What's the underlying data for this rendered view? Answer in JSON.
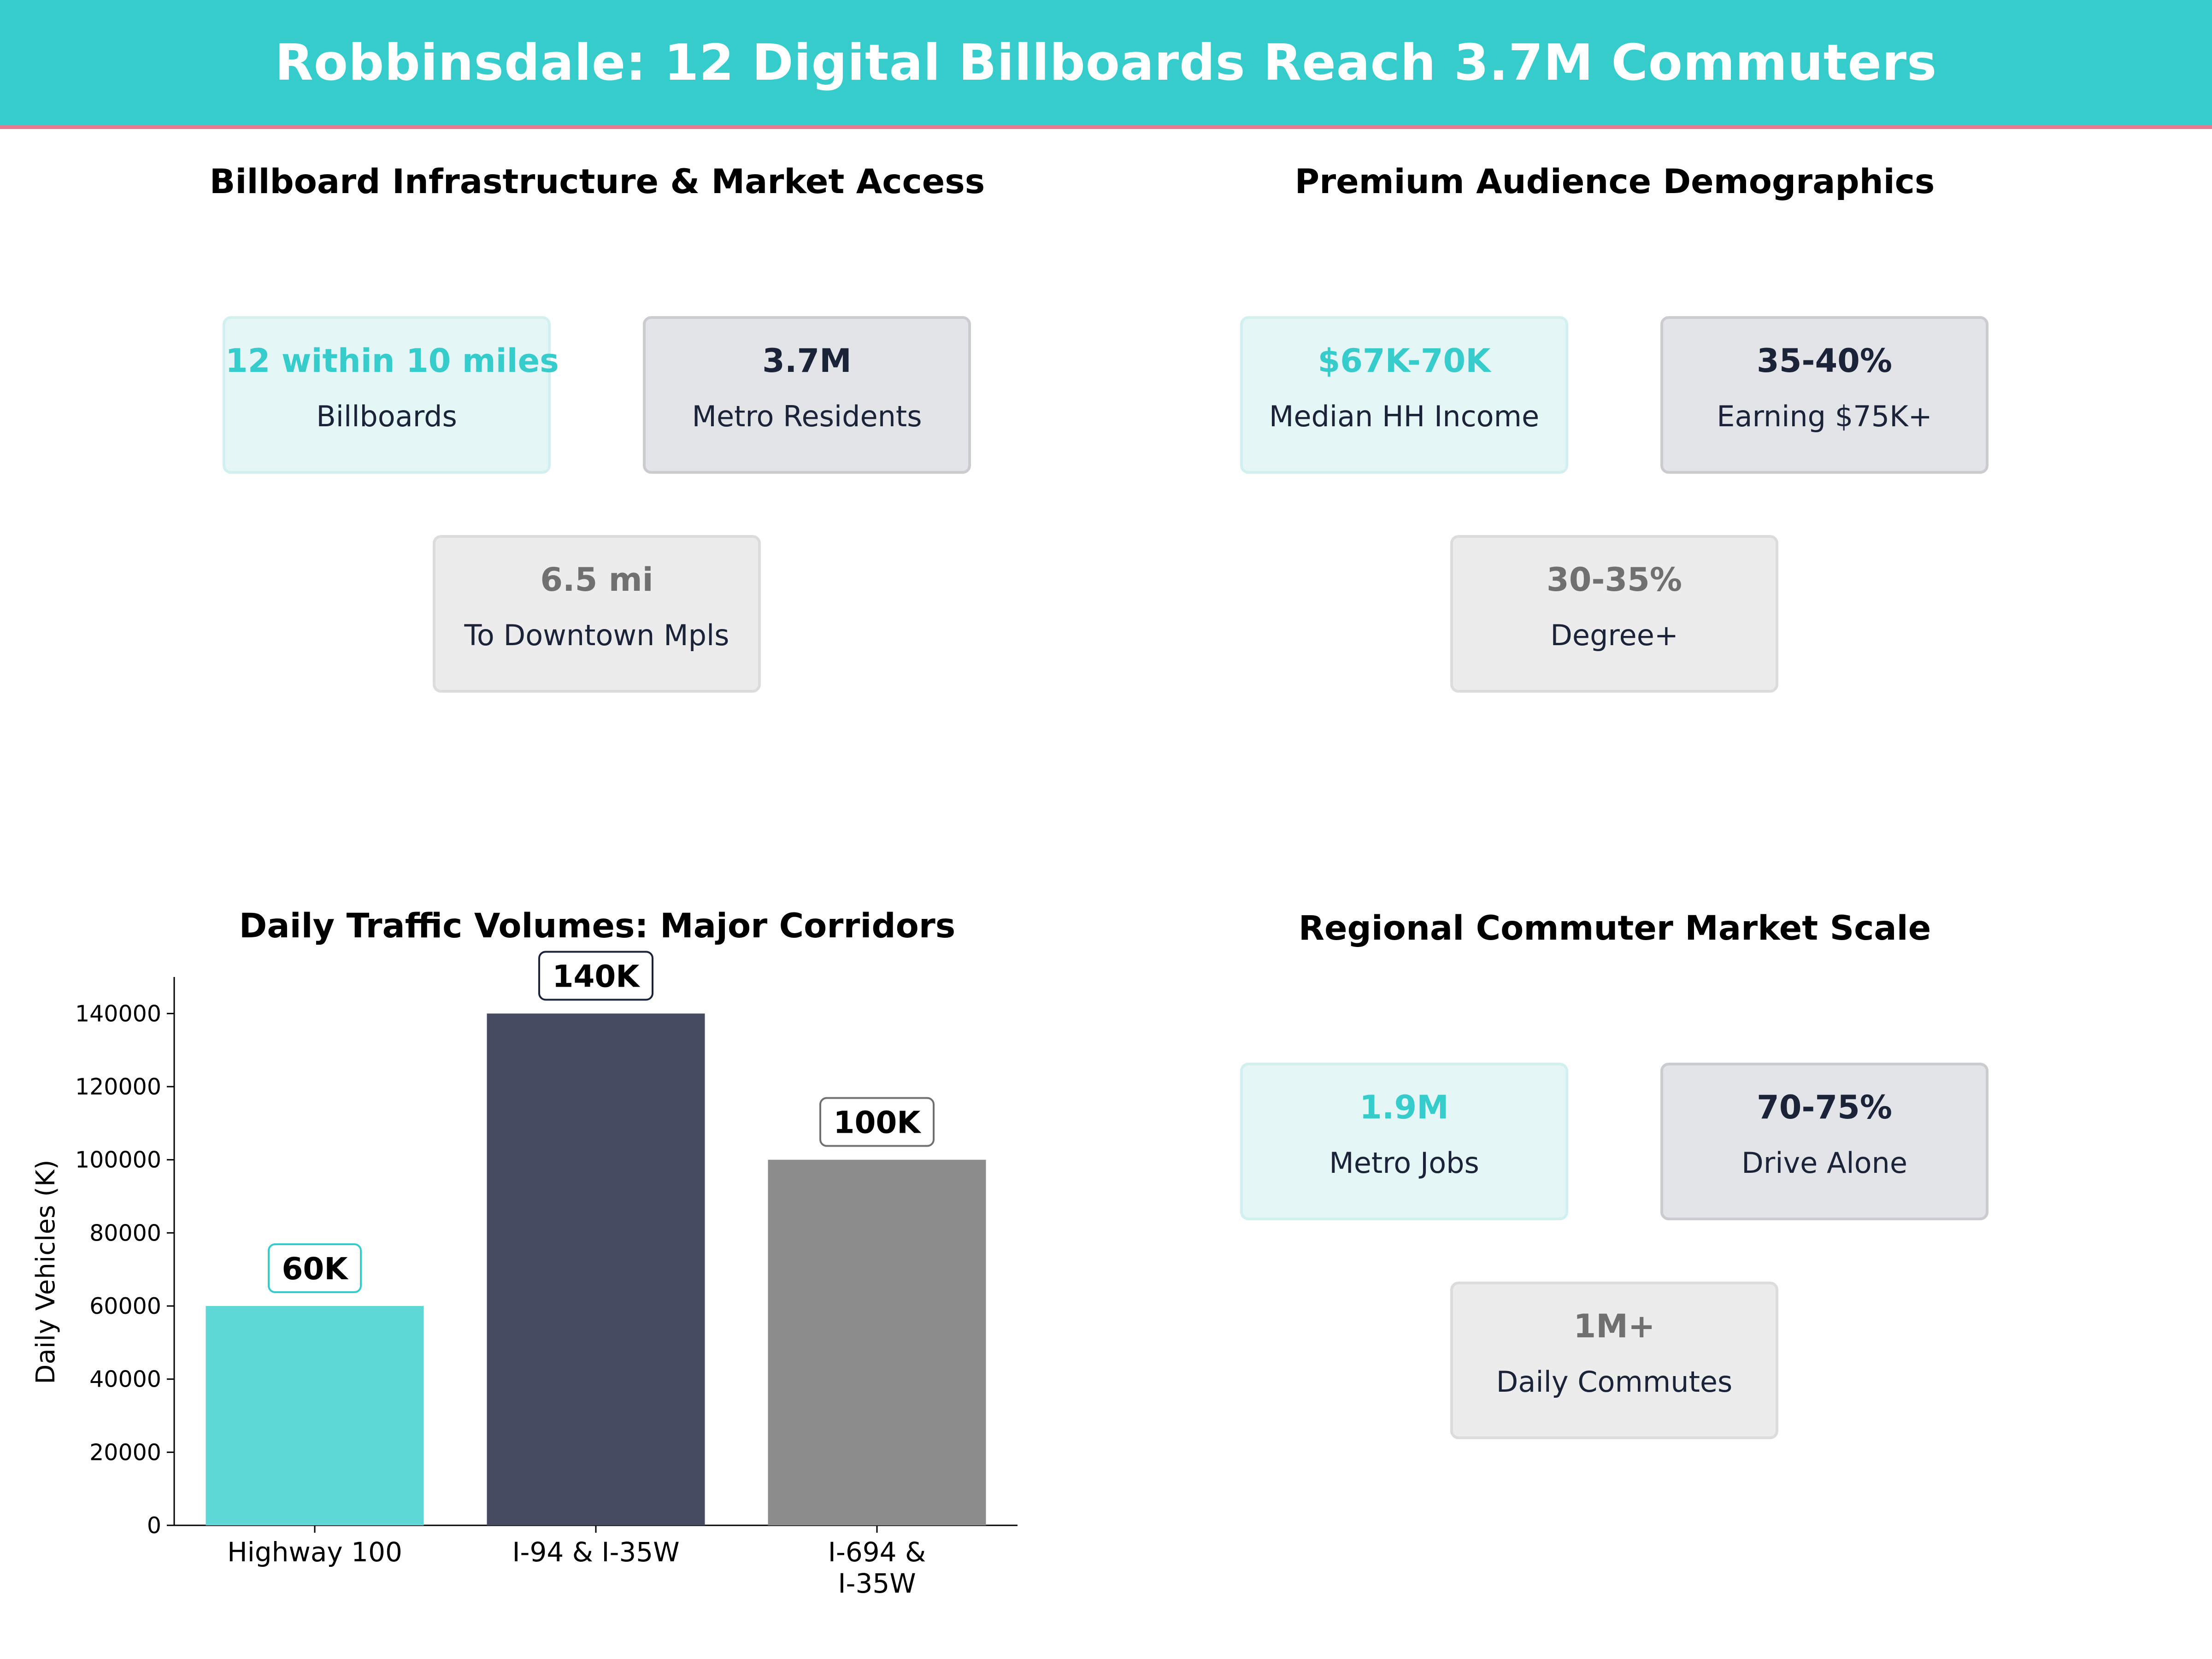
{
  "header": {
    "title": "Robbinsdale: 12 Digital Billboards Reach 3.7M Commuters"
  },
  "panels": {
    "infrastructure": {
      "title": "Billboard Infrastructure & Market Access",
      "cards": [
        {
          "value": "12 within 10 miles",
          "label": "Billboards"
        },
        {
          "value": "3.7M",
          "label": "Metro Residents"
        },
        {
          "value": "6.5 mi",
          "label": "To Downtown Mpls"
        }
      ]
    },
    "demographics": {
      "title": "Premium Audience Demographics",
      "cards": [
        {
          "value": "$67K-70K",
          "label": "Median HH Income"
        },
        {
          "value": "35-40%",
          "label": "Earning $75K+"
        },
        {
          "value": "30-35%",
          "label": "Degree+"
        }
      ]
    },
    "commuter": {
      "title": "Regional Commuter Market Scale",
      "cards": [
        {
          "value": "1.9M",
          "label": "Metro Jobs"
        },
        {
          "value": "70-75%",
          "label": "Drive Alone"
        },
        {
          "value": "1M+",
          "label": "Daily Commutes"
        }
      ]
    }
  },
  "colors": {
    "teal": "#36cccc",
    "navy": "#1a2338",
    "gray": "#707070",
    "accent_line": "#e77a8f"
  },
  "chart_data": {
    "type": "bar",
    "title": "Daily Traffic Volumes: Major Corridors",
    "xlabel": "",
    "ylabel": "Daily Vehicles (K)",
    "categories": [
      [
        "Highway 100"
      ],
      [
        "I-94 & I-35W"
      ],
      [
        "I-694 &",
        "I-35W"
      ]
    ],
    "values": [
      60000,
      140000,
      100000
    ],
    "data_labels": [
      "60K",
      "140K",
      "100K"
    ],
    "bar_colors": [
      "#5ed8d6",
      "#464b62",
      "#8c8c8c"
    ],
    "label_border_colors": [
      "#36cccc",
      "#1a2338",
      "#707070"
    ],
    "yticks": [
      0,
      20000,
      40000,
      60000,
      80000,
      100000,
      120000,
      140000
    ],
    "ylim": [
      0,
      150000
    ],
    "grid": false,
    "legend": "none"
  }
}
